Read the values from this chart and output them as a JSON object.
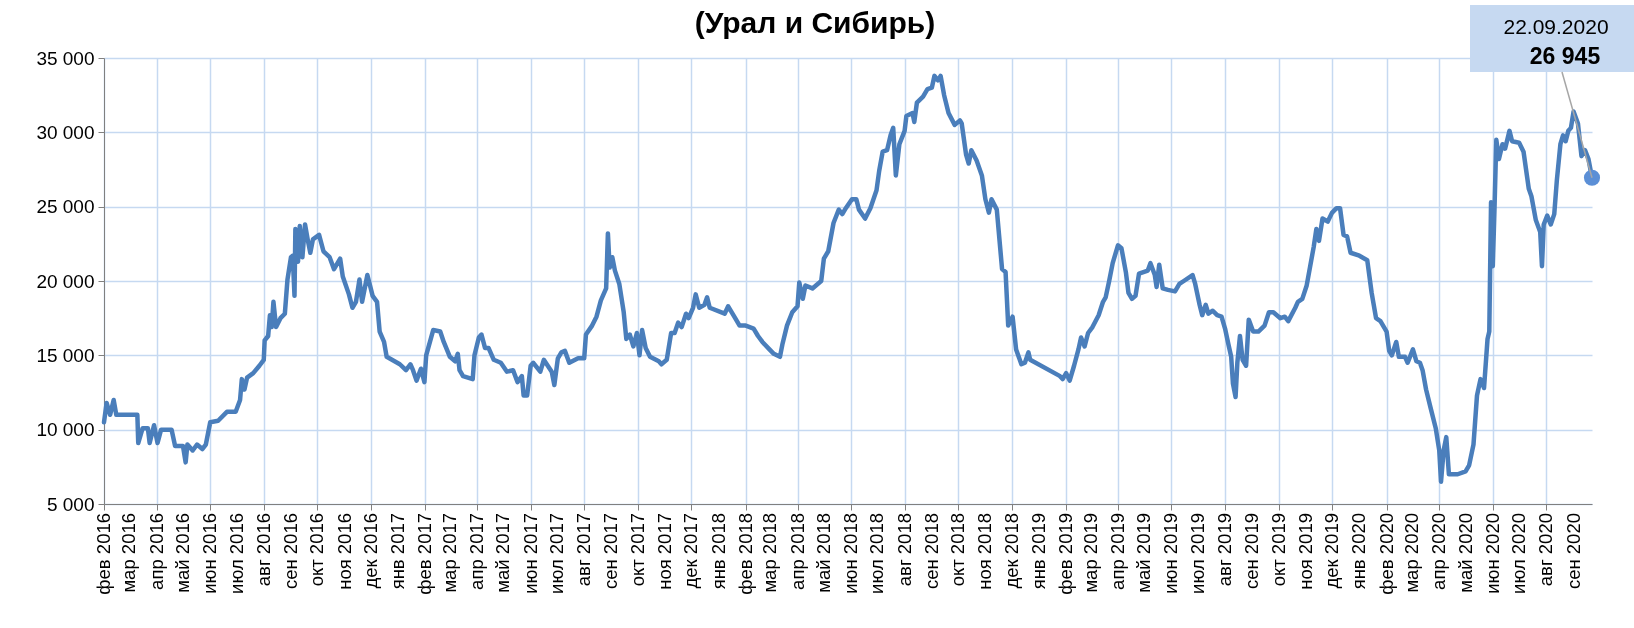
{
  "chart_data": {
    "type": "line",
    "title": "(Урал и Сибирь)",
    "x": [
      "2016-02-01",
      "2016-02-04",
      "2016-02-08",
      "2016-02-12",
      "2016-02-15",
      "2016-02-17",
      "2016-03-10",
      "2016-03-11",
      "2016-03-16",
      "2016-03-22",
      "2016-03-24",
      "2016-03-29",
      "2016-04-02",
      "2016-04-06",
      "2016-04-18",
      "2016-04-22",
      "2016-05-01",
      "2016-05-04",
      "2016-05-06",
      "2016-05-12",
      "2016-05-17",
      "2016-05-23",
      "2016-05-27",
      "2016-06-01",
      "2016-06-10",
      "2016-06-20",
      "2016-06-30",
      "2016-07-05",
      "2016-07-07",
      "2016-07-10",
      "2016-07-13",
      "2016-07-20",
      "2016-07-27",
      "2016-08-01",
      "2016-08-02",
      "2016-08-06",
      "2016-08-08",
      "2016-08-10",
      "2016-08-12",
      "2016-08-15",
      "2016-08-20",
      "2016-08-25",
      "2016-08-28",
      "2016-09-01",
      "2016-09-03",
      "2016-09-05",
      "2016-09-06",
      "2016-09-09",
      "2016-09-11",
      "2016-09-14",
      "2016-09-17",
      "2016-09-20",
      "2016-09-23",
      "2016-09-26",
      "2016-10-03",
      "2016-10-08",
      "2016-10-15",
      "2016-10-20",
      "2016-10-27",
      "2016-10-30",
      "2016-11-06",
      "2016-11-10",
      "2016-11-14",
      "2016-11-18",
      "2016-11-21",
      "2016-11-27",
      "2016-12-03",
      "2016-12-08",
      "2016-12-11",
      "2016-12-16",
      "2016-12-19",
      "2016-12-25",
      "2017-01-03",
      "2017-01-10",
      "2017-01-15",
      "2017-01-18",
      "2017-01-22",
      "2017-01-27",
      "2017-01-31",
      "2017-02-02",
      "2017-02-10",
      "2017-02-18",
      "2017-02-22",
      "2017-03-01",
      "2017-03-07",
      "2017-03-10",
      "2017-03-12",
      "2017-03-16",
      "2017-03-27",
      "2017-03-29",
      "2017-04-03",
      "2017-04-06",
      "2017-04-10",
      "2017-04-14",
      "2017-04-20",
      "2017-04-28",
      "2017-05-05",
      "2017-05-12",
      "2017-05-17",
      "2017-05-22",
      "2017-05-24",
      "2017-05-28",
      "2017-06-01",
      "2017-06-04",
      "2017-06-12",
      "2017-06-16",
      "2017-06-25",
      "2017-06-28",
      "2017-07-02",
      "2017-07-06",
      "2017-07-10",
      "2017-07-15",
      "2017-07-25",
      "2017-08-01",
      "2017-08-03",
      "2017-08-10",
      "2017-08-15",
      "2017-08-20",
      "2017-08-26",
      "2017-08-28",
      "2017-08-30",
      "2017-09-02",
      "2017-09-05",
      "2017-09-10",
      "2017-09-15",
      "2017-09-18",
      "2017-09-22",
      "2017-09-26",
      "2017-09-30",
      "2017-10-03",
      "2017-10-06",
      "2017-10-10",
      "2017-10-15",
      "2017-10-25",
      "2017-10-28",
      "2017-11-03",
      "2017-11-08",
      "2017-11-12",
      "2017-11-16",
      "2017-11-20",
      "2017-11-25",
      "2017-11-28",
      "2017-12-03",
      "2017-12-06",
      "2017-12-10",
      "2017-12-16",
      "2017-12-19",
      "2017-12-22",
      "2018-01-08",
      "2018-01-12",
      "2018-01-20",
      "2018-01-25",
      "2018-02-01",
      "2018-02-10",
      "2018-02-15",
      "2018-02-20",
      "2018-02-28",
      "2018-03-05",
      "2018-03-12",
      "2018-03-15",
      "2018-03-20",
      "2018-03-26",
      "2018-04-01",
      "2018-04-03",
      "2018-04-07",
      "2018-04-10",
      "2018-04-18",
      "2018-04-28",
      "2018-05-01",
      "2018-05-06",
      "2018-05-12",
      "2018-05-18",
      "2018-05-22",
      "2018-05-26",
      "2018-06-02",
      "2018-06-07",
      "2018-06-10",
      "2018-06-17",
      "2018-06-23",
      "2018-06-30",
      "2018-07-03",
      "2018-07-07",
      "2018-07-12",
      "2018-07-16",
      "2018-07-19",
      "2018-07-22",
      "2018-07-26",
      "2018-08-01",
      "2018-08-03",
      "2018-08-10",
      "2018-08-12",
      "2018-08-15",
      "2018-08-22",
      "2018-08-27",
      "2018-09-01",
      "2018-09-04",
      "2018-09-08",
      "2018-09-11",
      "2018-09-15",
      "2018-09-20",
      "2018-09-27",
      "2018-10-03",
      "2018-10-05",
      "2018-10-10",
      "2018-10-13",
      "2018-10-16",
      "2018-10-22",
      "2018-10-28",
      "2018-11-01",
      "2018-11-05",
      "2018-11-08",
      "2018-11-14",
      "2018-11-20",
      "2018-11-24",
      "2018-11-27",
      "2018-12-02",
      "2018-12-06",
      "2018-12-12",
      "2018-12-16",
      "2018-12-20",
      "2018-12-22",
      "2019-01-25",
      "2019-01-28",
      "2019-02-01",
      "2019-02-05",
      "2019-02-10",
      "2019-02-15",
      "2019-02-18",
      "2019-02-22",
      "2019-02-26",
      "2019-03-03",
      "2019-03-10",
      "2019-03-15",
      "2019-03-18",
      "2019-03-22",
      "2019-03-26",
      "2019-04-01",
      "2019-04-05",
      "2019-04-10",
      "2019-04-13",
      "2019-04-17",
      "2019-04-21",
      "2019-04-25",
      "2019-05-05",
      "2019-05-08",
      "2019-05-13",
      "2019-05-15",
      "2019-05-18",
      "2019-05-22",
      "2019-05-28",
      "2019-06-05",
      "2019-06-10",
      "2019-06-15",
      "2019-06-25",
      "2019-06-28",
      "2019-07-03",
      "2019-07-06",
      "2019-07-10",
      "2019-07-13",
      "2019-07-18",
      "2019-07-23",
      "2019-07-28",
      "2019-08-01",
      "2019-08-05",
      "2019-08-08",
      "2019-08-10",
      "2019-08-13",
      "2019-08-15",
      "2019-08-18",
      "2019-08-21",
      "2019-08-25",
      "2019-08-28",
      "2019-09-02",
      "2019-09-08",
      "2019-09-15",
      "2019-09-20",
      "2019-09-25",
      "2019-10-03",
      "2019-10-08",
      "2019-10-12",
      "2019-10-20",
      "2019-10-23",
      "2019-10-28",
      "2019-11-02",
      "2019-11-06",
      "2019-11-10",
      "2019-11-13",
      "2019-11-16",
      "2019-11-20",
      "2019-11-26",
      "2019-12-01",
      "2019-12-06",
      "2019-12-10",
      "2019-12-14",
      "2019-12-18",
      "2019-12-22",
      "2020-01-01",
      "2020-01-10",
      "2020-01-15",
      "2020-01-20",
      "2020-01-25",
      "2020-02-01",
      "2020-02-04",
      "2020-02-07",
      "2020-02-12",
      "2020-02-15",
      "2020-02-22",
      "2020-02-25",
      "2020-03-02",
      "2020-03-06",
      "2020-03-10",
      "2020-03-13",
      "2020-03-17",
      "2020-03-22",
      "2020-03-28",
      "2020-04-01",
      "2020-04-03",
      "2020-04-06",
      "2020-04-09",
      "2020-04-12",
      "2020-04-15",
      "2020-04-22",
      "2020-05-01",
      "2020-05-05",
      "2020-05-10",
      "2020-05-14",
      "2020-05-18",
      "2020-05-22",
      "2020-05-26",
      "2020-05-28",
      "2020-05-30",
      "2020-06-01",
      "2020-06-03",
      "2020-06-05",
      "2020-06-08",
      "2020-06-12",
      "2020-06-15",
      "2020-06-20",
      "2020-06-23",
      "2020-07-01",
      "2020-07-06",
      "2020-07-12",
      "2020-07-15",
      "2020-07-20",
      "2020-07-25",
      "2020-07-27",
      "2020-07-29",
      "2020-08-02",
      "2020-08-06",
      "2020-08-10",
      "2020-08-13",
      "2020-08-17",
      "2020-08-20",
      "2020-08-23",
      "2020-08-26",
      "2020-08-29",
      "2020-09-01",
      "2020-09-06",
      "2020-09-08",
      "2020-09-10",
      "2020-09-14",
      "2020-09-18",
      "2020-09-22"
    ],
    "series": [
      {
        "color": "#4a7ebb",
        "values": [
          10500,
          11800,
          11000,
          12000,
          11000,
          11000,
          11000,
          9100,
          10100,
          10100,
          9100,
          10300,
          9100,
          10000,
          10000,
          8900,
          8900,
          7800,
          9000,
          8600,
          9000,
          8700,
          9000,
          10500,
          10600,
          11200,
          11200,
          12000,
          13400,
          12700,
          13500,
          13800,
          14300,
          14700,
          16000,
          16300,
          17700,
          16900,
          18600,
          16900,
          17500,
          17800,
          20100,
          21600,
          21700,
          19000,
          23500,
          21300,
          23700,
          21600,
          23800,
          22800,
          21900,
          22800,
          23100,
          22000,
          21600,
          20800,
          21500,
          20300,
          19100,
          18200,
          18600,
          20100,
          18600,
          20400,
          19000,
          18600,
          16600,
          15900,
          14900,
          14700,
          14400,
          14000,
          14400,
          14000,
          13300,
          14100,
          13200,
          15000,
          16700,
          16600,
          15900,
          14900,
          14600,
          15100,
          14000,
          13600,
          13400,
          15000,
          16200,
          16400,
          15500,
          15500,
          14700,
          14500,
          13900,
          14000,
          13200,
          13600,
          12300,
          12300,
          14300,
          14500,
          13900,
          14700,
          13900,
          13000,
          14800,
          15200,
          15300,
          14500,
          14800,
          14800,
          16400,
          17000,
          17600,
          18700,
          19500,
          23200,
          20900,
          21600,
          20700,
          19800,
          17900,
          16100,
          16400,
          15600,
          16500,
          15000,
          16700,
          15500,
          14900,
          14600,
          14400,
          14700,
          16500,
          16500,
          17200,
          16900,
          17800,
          17500,
          18200,
          19100,
          18200,
          18400,
          18900,
          18200,
          17800,
          18300,
          17500,
          17000,
          17000,
          16800,
          16300,
          15900,
          15400,
          15100,
          14900,
          15800,
          17000,
          17900,
          18300,
          19900,
          18800,
          19700,
          19500,
          20000,
          21500,
          22000,
          23900,
          24800,
          24500,
          24900,
          25500,
          25500,
          24800,
          24200,
          24900,
          26100,
          27400,
          28700,
          28800,
          29800,
          30300,
          27100,
          29200,
          30100,
          31100,
          31300,
          30700,
          32000,
          32400,
          32900,
          33000,
          33800,
          33500,
          33800,
          32500,
          31300,
          30500,
          30800,
          30600,
          28500,
          27900,
          28800,
          28100,
          27100,
          25500,
          24600,
          25500,
          24800,
          20800,
          20600,
          17000,
          17600,
          15400,
          14400,
          14500,
          15200,
          14700,
          13600,
          13400,
          13800,
          13300,
          14300,
          15400,
          16200,
          15600,
          16500,
          16900,
          17700,
          18600,
          18900,
          20000,
          21200,
          22400,
          22200,
          20600,
          19200,
          18800,
          19000,
          20500,
          20700,
          21200,
          20400,
          19600,
          21100,
          19500,
          19400,
          19300,
          19800,
          20000,
          20400,
          19800,
          18400,
          17700,
          18400,
          17800,
          18000,
          17700,
          17600,
          16800,
          15700,
          14900,
          13100,
          12200,
          14500,
          16300,
          14700,
          14300,
          17400,
          16600,
          16600,
          17000,
          17900,
          17900,
          17500,
          17600,
          17300,
          18200,
          18600,
          18800,
          19700,
          21000,
          22300,
          23500,
          22700,
          24200,
          24000,
          24600,
          24900,
          24900,
          23100,
          23000,
          21900,
          21700,
          21400,
          19200,
          17500,
          17300,
          16600,
          15300,
          15000,
          15900,
          14900,
          14900,
          14500,
          15400,
          14600,
          14500,
          14000,
          12700,
          11500,
          10100,
          8600,
          6500,
          8600,
          9500,
          7000,
          7000,
          7000,
          7200,
          7600,
          9000,
          12300,
          13400,
          12800,
          16100,
          16600,
          25300,
          21000,
          25000,
          29500,
          28200,
          29200,
          28900,
          30100,
          29400,
          29300,
          28700,
          26200,
          25700,
          24100,
          23300,
          21000,
          23800,
          24400,
          23800,
          24500,
          26800,
          29200,
          29800,
          29400,
          30100,
          30300,
          31400,
          30600,
          29500,
          28400,
          28800,
          28200,
          26945
        ]
      }
    ],
    "xlim": [
      "2016-02-01",
      "2020-09-22"
    ],
    "xticks": [
      {
        "value": "2016-02",
        "label": "фев 2016"
      },
      {
        "value": "2016-03",
        "label": "мар 2016"
      },
      {
        "value": "2016-04",
        "label": "апр 2016"
      },
      {
        "value": "2016-05",
        "label": "май 2016"
      },
      {
        "value": "2016-06",
        "label": "июн 2016"
      },
      {
        "value": "2016-07",
        "label": "июл 2016"
      },
      {
        "value": "2016-08",
        "label": "авг 2016"
      },
      {
        "value": "2016-09",
        "label": "сен 2016"
      },
      {
        "value": "2016-10",
        "label": "окт 2016"
      },
      {
        "value": "2016-11",
        "label": "ноя 2016"
      },
      {
        "value": "2016-12",
        "label": "дек 2016"
      },
      {
        "value": "2017-01",
        "label": "янв 2017"
      },
      {
        "value": "2017-02",
        "label": "фев 2017"
      },
      {
        "value": "2017-03",
        "label": "мар 2017"
      },
      {
        "value": "2017-04",
        "label": "апр 2017"
      },
      {
        "value": "2017-05",
        "label": "май 2017"
      },
      {
        "value": "2017-06",
        "label": "июн 2017"
      },
      {
        "value": "2017-07",
        "label": "июл 2017"
      },
      {
        "value": "2017-08",
        "label": "авг 2017"
      },
      {
        "value": "2017-09",
        "label": "сен 2017"
      },
      {
        "value": "2017-10",
        "label": "окт 2017"
      },
      {
        "value": "2017-11",
        "label": "ноя 2017"
      },
      {
        "value": "2017-12",
        "label": "дек 2017"
      },
      {
        "value": "2018-01",
        "label": "янв 2018"
      },
      {
        "value": "2018-02",
        "label": "фев 2018"
      },
      {
        "value": "2018-03",
        "label": "мар 2018"
      },
      {
        "value": "2018-04",
        "label": "апр 2018"
      },
      {
        "value": "2018-05",
        "label": "май 2018"
      },
      {
        "value": "2018-06",
        "label": "июн 2018"
      },
      {
        "value": "2018-07",
        "label": "июл 2018"
      },
      {
        "value": "2018-08",
        "label": "авг 2018"
      },
      {
        "value": "2018-09",
        "label": "сен 2018"
      },
      {
        "value": "2018-10",
        "label": "окт 2018"
      },
      {
        "value": "2018-11",
        "label": "ноя 2018"
      },
      {
        "value": "2018-12",
        "label": "дек 2018"
      },
      {
        "value": "2019-01",
        "label": "янв 2019"
      },
      {
        "value": "2019-02",
        "label": "фев 2019"
      },
      {
        "value": "2019-03",
        "label": "мар 2019"
      },
      {
        "value": "2019-04",
        "label": "апр 2019"
      },
      {
        "value": "2019-05",
        "label": "май 2019"
      },
      {
        "value": "2019-06",
        "label": "июн 2019"
      },
      {
        "value": "2019-07",
        "label": "июл 2019"
      },
      {
        "value": "2019-08",
        "label": "авг 2019"
      },
      {
        "value": "2019-09",
        "label": "сен 2019"
      },
      {
        "value": "2019-10",
        "label": "окт 2019"
      },
      {
        "value": "2019-11",
        "label": "ноя 2019"
      },
      {
        "value": "2019-12",
        "label": "дек 2019"
      },
      {
        "value": "2020-01",
        "label": "янв 2020"
      },
      {
        "value": "2020-02",
        "label": "фев 2020"
      },
      {
        "value": "2020-03",
        "label": "мар 2020"
      },
      {
        "value": "2020-04",
        "label": "апр 2020"
      },
      {
        "value": "2020-05",
        "label": "май 2020"
      },
      {
        "value": "2020-06",
        "label": "июн 2020"
      },
      {
        "value": "2020-07",
        "label": "июл 2020"
      },
      {
        "value": "2020-08",
        "label": "авг 2020"
      },
      {
        "value": "2020-09",
        "label": "сен 2020"
      }
    ],
    "ylim": [
      5000,
      35000
    ],
    "yticks": [
      {
        "value": 5000,
        "label": "5 000"
      },
      {
        "value": 10000,
        "label": "10 000"
      },
      {
        "value": 15000,
        "label": "15 000"
      },
      {
        "value": 20000,
        "label": "20 000"
      },
      {
        "value": 25000,
        "label": "25 000"
      },
      {
        "value": 30000,
        "label": "30 000"
      },
      {
        "value": 35000,
        "label": "35 000"
      }
    ],
    "grid": true,
    "annotations": [
      "22.09.2020",
      {
        "text": "26 945",
        "x": "2020-09-22",
        "y": 26945
      }
    ]
  }
}
